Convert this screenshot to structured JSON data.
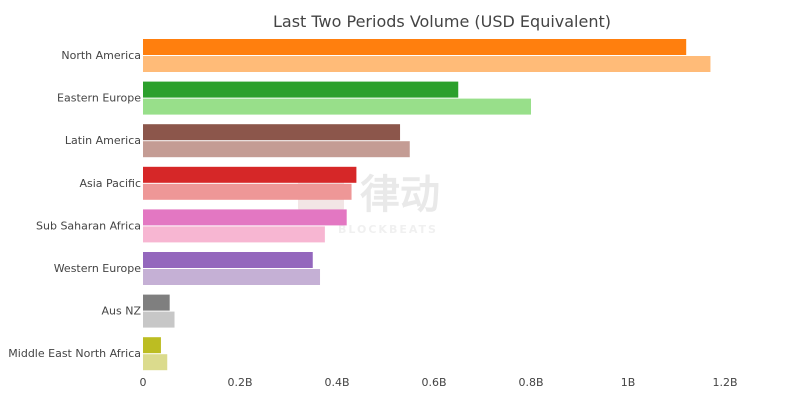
{
  "chart_data": {
    "type": "bar",
    "orientation": "horizontal",
    "title": "Last Two Periods Volume (USD Equivalent)",
    "xlabel": "",
    "ylabel": "",
    "xlim": [
      0,
      1.28
    ],
    "x_ticks": [
      0,
      0.2,
      0.4,
      0.6,
      0.8,
      1.0,
      1.2
    ],
    "x_tick_labels": [
      "0",
      "0.2B",
      "0.4B",
      "0.6B",
      "0.8B",
      "1B",
      "1.2B"
    ],
    "categories": [
      "North America",
      "Eastern Europe",
      "Latin America",
      "Asia Pacific",
      "Sub Saharan Africa",
      "Western Europe",
      "Aus NZ",
      "Middle East North Africa"
    ],
    "series": [
      {
        "values": [
          1.12,
          0.65,
          0.53,
          0.44,
          0.42,
          0.35,
          0.055,
          0.037
        ]
      },
      {
        "values": [
          1.17,
          0.8,
          0.55,
          0.43,
          0.375,
          0.365,
          0.065,
          0.05
        ]
      }
    ],
    "colors": [
      [
        "#ff7f0e",
        "#ffbb78"
      ],
      [
        "#2ca02c",
        "#98df8a"
      ],
      [
        "#8c564b",
        "#c49c94"
      ],
      [
        "#d62728",
        "#ee9797"
      ],
      [
        "#e377c2",
        "#f7b6d2"
      ],
      [
        "#9467bd",
        "#c5b0d5"
      ],
      [
        "#7f7f7f",
        "#c7c7c7"
      ],
      [
        "#bcbd22",
        "#dbdb8d"
      ]
    ],
    "grid": false,
    "legend": "none"
  },
  "watermark": {
    "main": "律动",
    "sub": "BLOCKBEATS"
  }
}
